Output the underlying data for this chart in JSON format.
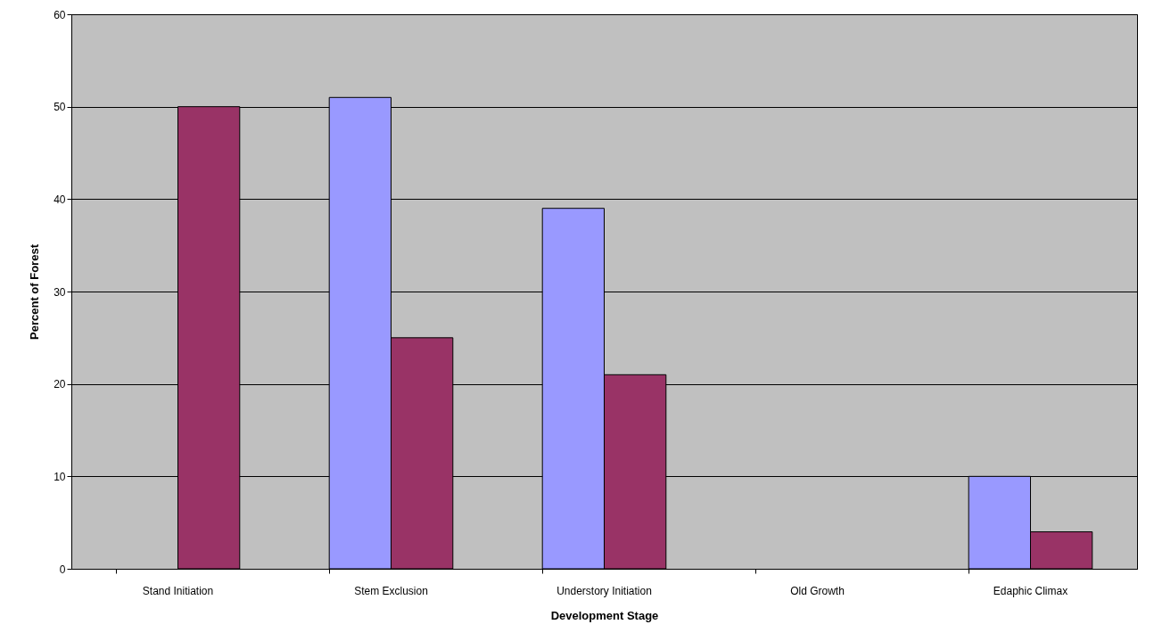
{
  "chart_data": {
    "type": "bar",
    "xlabel": "Development Stage",
    "ylabel": "Percent of Forest",
    "categories": [
      "Stand Initiation",
      "Stem Exclusion",
      "Understory Initiation",
      "Old Growth",
      "Edaphic Climax"
    ],
    "series": [
      {
        "color": "#9999ff",
        "values": [
          null,
          51,
          39,
          null,
          10
        ]
      },
      {
        "color": "#993366",
        "values": [
          50,
          25,
          21,
          null,
          4
        ]
      }
    ],
    "ylim": [
      0,
      60
    ],
    "yticks": [
      0,
      10,
      20,
      30,
      40,
      50,
      60
    ],
    "grid": "y"
  }
}
